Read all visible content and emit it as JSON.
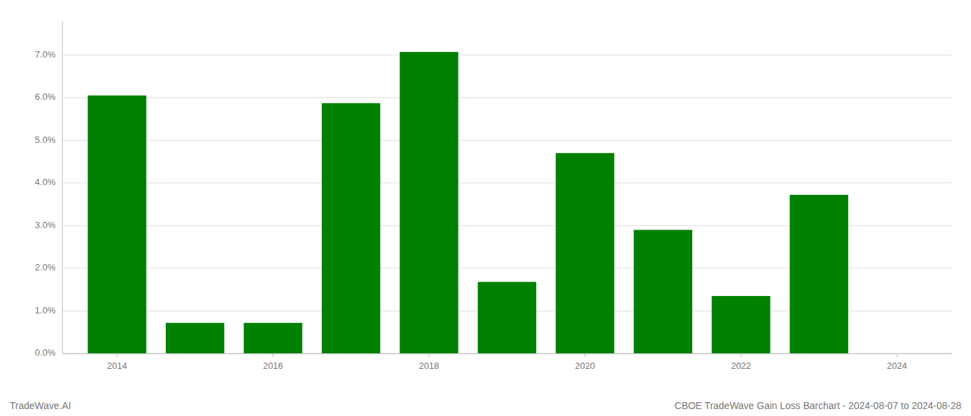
{
  "chart_data": {
    "type": "bar",
    "title": "CBOE TradeWave Gain Loss Barchart - 2024-08-07 to 2024-08-28",
    "annotations": [
      "TradeWave.AI"
    ],
    "x": [
      2014,
      2015,
      2016,
      2017,
      2018,
      2019,
      2020,
      2021,
      2022,
      2023,
      2024
    ],
    "values": [
      0.0605,
      0.0072,
      0.0072,
      0.0587,
      0.0707,
      0.0168,
      0.047,
      0.029,
      0.0135,
      0.0372,
      0.0
    ],
    "color": "#008000",
    "xlim": [
      2013.3,
      2024.7
    ],
    "xticks": [
      2014,
      2016,
      2018,
      2020,
      2022,
      2024
    ],
    "ylim": [
      0,
      0.078
    ],
    "yticks": [
      {
        "value": 0.0,
        "label": "0.0%"
      },
      {
        "value": 0.01,
        "label": "1.0%"
      },
      {
        "value": 0.02,
        "label": "2.0%"
      },
      {
        "value": 0.03,
        "label": "3.0%"
      },
      {
        "value": 0.04,
        "label": "4.0%"
      },
      {
        "value": 0.05,
        "label": "5.0%"
      },
      {
        "value": 0.06,
        "label": "6.0%"
      },
      {
        "value": 0.07,
        "label": "7.0%"
      }
    ],
    "grid": true
  }
}
